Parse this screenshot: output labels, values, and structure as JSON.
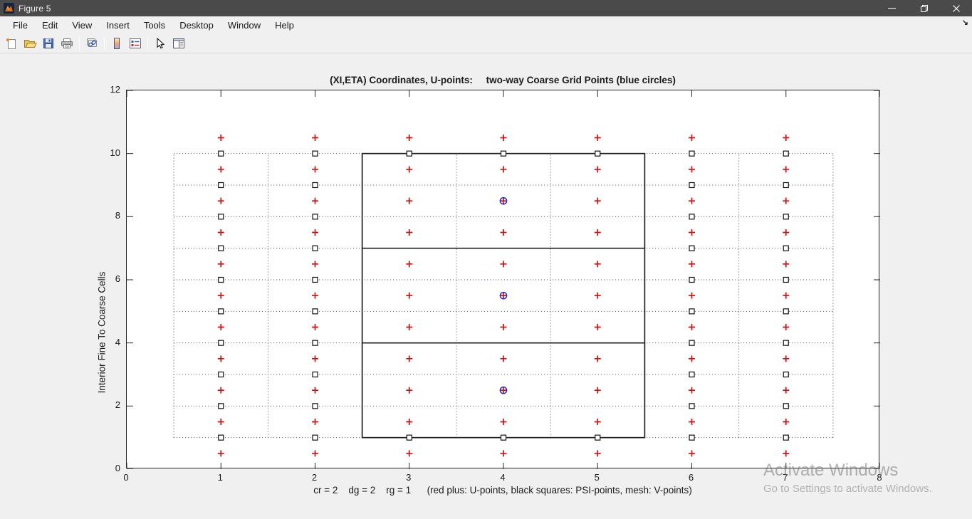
{
  "window": {
    "title": "Figure 5",
    "controls": {
      "minimize": "minimize",
      "restore": "restore",
      "close": "close"
    }
  },
  "menu_bar": {
    "items": [
      "File",
      "Edit",
      "View",
      "Insert",
      "Tools",
      "Desktop",
      "Window",
      "Help"
    ],
    "dock_arrow": "↘"
  },
  "toolbar": {
    "buttons": [
      "new-figure",
      "open-file",
      "save-figure",
      "print-figure",
      "sep",
      "link-plot",
      "sep",
      "insert-colorbar",
      "insert-legend",
      "sep",
      "edit-plot",
      "property-inspector"
    ]
  },
  "watermark": {
    "line1": "Activate Windows",
    "line2": "Go to Settings to activate Windows."
  },
  "chart_data": {
    "type": "scatter",
    "title": "(XI,ETA) Coordinates, U-points:     two-way Coarse Grid Points (blue circles)",
    "xlabel": "cr = 2    dg = 2    rg = 1      (red plus: U-points, black squares: PSI-points, mesh: V-points)",
    "ylabel": "Interior Fine To Coarse Cells",
    "xlim": [
      0,
      8
    ],
    "ylim": [
      0,
      12
    ],
    "xticks": [
      0,
      1,
      2,
      3,
      4,
      5,
      6,
      7,
      8
    ],
    "yticks": [
      0,
      2,
      4,
      6,
      8,
      10,
      12
    ],
    "grid": false,
    "tick_color": "#262626",
    "fine_grid": {
      "style": "dotted",
      "color": "#4a4a4a",
      "vertical_x": [
        0.5,
        1.5,
        2.5,
        3.5,
        4.5,
        5.5,
        6.5,
        7.5
      ],
      "vertical_span_y": [
        1,
        10
      ],
      "horizontal_y": [
        1,
        2,
        3,
        4,
        5,
        6,
        7,
        8,
        9,
        10
      ],
      "horizontal_span_x": [
        0.5,
        7.5
      ]
    },
    "coarse_mesh": {
      "style": "solid",
      "color": "#1f1f1f",
      "x_span": [
        2.5,
        5.5
      ],
      "y_span": [
        1,
        10
      ],
      "inner_horizontal_y": [
        4,
        7
      ]
    },
    "series": [
      {
        "name": "U-points",
        "marker": "plus",
        "color": "#d40d0d",
        "layout": "grid",
        "x_values": [
          1,
          2,
          3,
          4,
          5,
          6,
          7
        ],
        "y_values": [
          0.5,
          1.5,
          2.5,
          3.5,
          4.5,
          5.5,
          6.5,
          7.5,
          8.5,
          9.5,
          10.5
        ]
      },
      {
        "name": "PSI-points",
        "marker": "open-square",
        "color": "#111111",
        "layout": "grid",
        "x_values": [
          1,
          2,
          6,
          7
        ],
        "y_values": [
          1,
          2,
          3,
          4,
          5,
          6,
          7,
          8,
          9,
          10
        ],
        "extra_points": [
          [
            3,
            1
          ],
          [
            3,
            10
          ],
          [
            4,
            1
          ],
          [
            4,
            10
          ],
          [
            5,
            1
          ],
          [
            5,
            10
          ]
        ]
      },
      {
        "name": "two-way coarse grid points",
        "marker": "open-circle",
        "color": "#2a2ac8",
        "points": [
          [
            4,
            8.5
          ],
          [
            4,
            5.5
          ],
          [
            4,
            2.5
          ]
        ]
      }
    ]
  }
}
